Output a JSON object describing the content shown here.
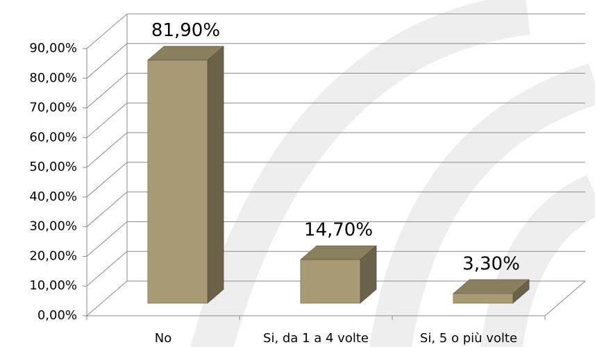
{
  "chart_data": {
    "type": "bar3d",
    "categories": [
      "No",
      "Si, da 1 a 4 volte",
      "Si, 5 o più volte"
    ],
    "values": [
      81.9,
      14.7,
      3.3
    ],
    "value_labels": [
      "81,90%",
      "14,70%",
      "3,30%"
    ],
    "color": "#a89a74",
    "ylim": [
      0,
      90
    ],
    "yticks": [
      {
        "value": 0,
        "label": "0,00%"
      },
      {
        "value": 10,
        "label": "10,00%"
      },
      {
        "value": 20,
        "label": "20,00%"
      },
      {
        "value": 30,
        "label": "30,00%"
      },
      {
        "value": 40,
        "label": "40,00%"
      },
      {
        "value": 50,
        "label": "50,00%"
      },
      {
        "value": 60,
        "label": "60,00%"
      },
      {
        "value": 70,
        "label": "70,00%"
      },
      {
        "value": 80,
        "label": "80,00%"
      },
      {
        "value": 90,
        "label": "90,00%"
      }
    ],
    "grid": true
  }
}
